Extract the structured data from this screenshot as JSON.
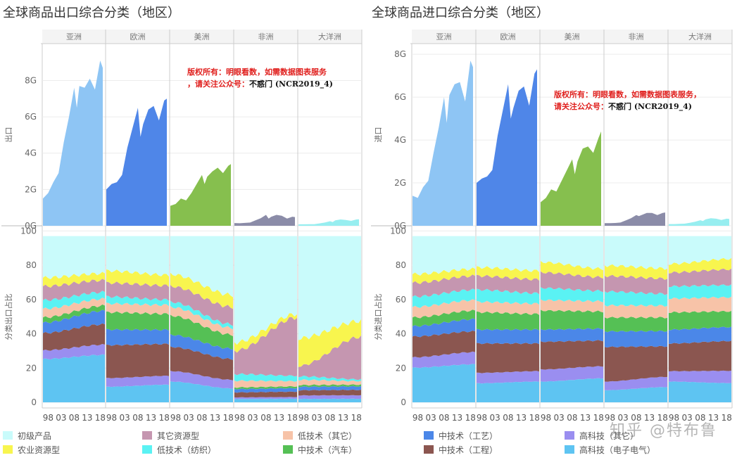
{
  "watermark": "知乎 @特布鲁",
  "chart_data": [
    {
      "type": "area",
      "title": "全球商品出口综合分类（地区）",
      "regions": [
        "亚洲",
        "欧洲",
        "美洲",
        "非洲",
        "大洋洲"
      ],
      "x_tick_labels": [
        "98",
        "03",
        "08",
        "13",
        "18"
      ],
      "top": {
        "ylabel": "出口",
        "ylim": [
          0,
          9.8
        ],
        "ytick_labels": [
          "0G",
          "2G",
          "4G",
          "6G",
          "8G"
        ],
        "yticks": [
          0,
          2,
          4,
          6,
          8
        ],
        "series": [
          {
            "region": "亚洲",
            "x": [
              1996,
              1998,
              2000,
              2002,
              2004,
              2006,
              2008,
              2009,
              2010,
              2012,
              2014,
              2016,
              2018,
              2019
            ],
            "values": [
              1.5,
              1.8,
              2.4,
              2.9,
              4.6,
              6.0,
              7.6,
              6.5,
              7.7,
              7.6,
              8.1,
              7.5,
              9.1,
              8.7
            ]
          },
          {
            "region": "欧洲",
            "x": [
              1996,
              1998,
              2000,
              2002,
              2004,
              2006,
              2008,
              2009,
              2010,
              2012,
              2014,
              2016,
              2018,
              2019
            ],
            "values": [
              2.0,
              2.3,
              2.4,
              2.8,
              4.3,
              5.4,
              6.5,
              4.9,
              5.6,
              6.4,
              6.6,
              5.8,
              6.9,
              7.0
            ]
          },
          {
            "region": "美洲",
            "x": [
              1996,
              1998,
              2000,
              2002,
              2004,
              2006,
              2008,
              2009,
              2010,
              2012,
              2014,
              2016,
              2018,
              2019
            ],
            "values": [
              1.1,
              1.2,
              1.5,
              1.4,
              1.8,
              2.3,
              2.8,
              2.3,
              2.7,
              3.0,
              3.2,
              2.9,
              3.3,
              3.4
            ]
          },
          {
            "region": "非洲",
            "x": [
              1996,
              1998,
              2000,
              2002,
              2004,
              2006,
              2008,
              2009,
              2010,
              2012,
              2014,
              2016,
              2018,
              2019
            ],
            "values": [
              0.15,
              0.14,
              0.16,
              0.18,
              0.3,
              0.42,
              0.6,
              0.4,
              0.5,
              0.6,
              0.55,
              0.4,
              0.5,
              0.48
            ]
          },
          {
            "region": "大洋洲",
            "x": [
              1996,
              1998,
              2000,
              2002,
              2004,
              2006,
              2008,
              2009,
              2010,
              2012,
              2014,
              2016,
              2018,
              2019
            ],
            "values": [
              0.08,
              0.08,
              0.09,
              0.09,
              0.13,
              0.18,
              0.25,
              0.2,
              0.3,
              0.35,
              0.32,
              0.27,
              0.35,
              0.36
            ]
          }
        ]
      },
      "bottom": {
        "ylabel": "分类出口占比",
        "ylim": [
          0,
          103
        ],
        "ytick_labels": [
          "0",
          "20",
          "40",
          "60",
          "80",
          "100"
        ],
        "yticks": [
          0,
          20,
          40,
          60,
          80,
          100
        ]
      },
      "annotation": {
        "line1": "版权所有：明眼看数，如需数据图表服务",
        "line2_red": "，请关注公众号：",
        "line2_black": "不惑门 (NCR2019_4)"
      }
    },
    {
      "type": "area",
      "title": "全球商品进口综合分类（地区）",
      "regions": [
        "亚洲",
        "欧洲",
        "美洲",
        "非洲",
        "大洋洲"
      ],
      "x_tick_labels": [
        "98",
        "03",
        "08",
        "13",
        "18"
      ],
      "top": {
        "ylabel": "进口",
        "ylim": [
          0,
          8.3
        ],
        "ytick_labels": [
          "0G",
          "2G",
          "4G",
          "6G",
          "8G"
        ],
        "yticks": [
          0,
          2,
          4,
          6,
          8
        ],
        "series": [
          {
            "region": "亚洲",
            "x": [
              1996,
              1998,
              2000,
              2002,
              2004,
              2006,
              2008,
              2009,
              2010,
              2012,
              2014,
              2016,
              2018,
              2019
            ],
            "values": [
              1.4,
              1.3,
              1.8,
              2.1,
              3.4,
              4.6,
              6.0,
              4.8,
              6.1,
              6.6,
              6.7,
              5.8,
              7.7,
              7.4
            ]
          },
          {
            "region": "欧洲",
            "x": [
              1996,
              1998,
              2000,
              2002,
              2004,
              2006,
              2008,
              2009,
              2010,
              2012,
              2014,
              2016,
              2018,
              2019
            ],
            "values": [
              2.0,
              2.2,
              2.3,
              2.6,
              4.2,
              5.4,
              6.6,
              5.0,
              5.5,
              6.3,
              6.5,
              5.6,
              7.1,
              7.3
            ]
          },
          {
            "region": "美洲",
            "x": [
              1996,
              1998,
              2000,
              2002,
              2004,
              2006,
              2008,
              2009,
              2010,
              2012,
              2014,
              2016,
              2018,
              2019
            ],
            "values": [
              1.1,
              1.3,
              1.7,
              1.6,
              2.1,
              2.6,
              3.1,
              2.4,
              3.0,
              3.6,
              3.7,
              3.4,
              4.1,
              4.4
            ]
          },
          {
            "region": "非洲",
            "x": [
              1996,
              1998,
              2000,
              2002,
              2004,
              2006,
              2008,
              2009,
              2010,
              2012,
              2014,
              2016,
              2018,
              2019
            ],
            "values": [
              0.12,
              0.12,
              0.13,
              0.15,
              0.25,
              0.35,
              0.5,
              0.45,
              0.5,
              0.6,
              0.6,
              0.5,
              0.6,
              0.62
            ]
          },
          {
            "region": "大洋洲",
            "x": [
              1996,
              1998,
              2000,
              2002,
              2004,
              2006,
              2008,
              2009,
              2010,
              2012,
              2014,
              2016,
              2018,
              2019
            ],
            "values": [
              0.08,
              0.08,
              0.09,
              0.1,
              0.14,
              0.19,
              0.26,
              0.22,
              0.3,
              0.35,
              0.33,
              0.27,
              0.33,
              0.32
            ]
          }
        ]
      },
      "bottom": {
        "ylabel": "分类进口占比",
        "ylim": [
          0,
          103
        ],
        "ytick_labels": [
          "0",
          "20",
          "40",
          "60",
          "80",
          "100"
        ],
        "yticks": [
          0,
          20,
          40,
          60,
          80,
          100
        ]
      },
      "annotation": {
        "line1": "版权所有：明眼看数，如需数据图表服务，",
        "line2_red": "请关注公众号：",
        "line2_black": "不惑门 (NCR2019_4)"
      }
    }
  ],
  "region_colors": [
    "#8ec5f4",
    "#4f86e8",
    "#86bf4e",
    "#8b8ca8",
    "#97eef0"
  ],
  "categories": [
    {
      "name": "高科技（电子电气）",
      "color": "#5ec4f2"
    },
    {
      "name": "高科技（其它）",
      "color": "#9a8ef0"
    },
    {
      "name": "中技术（工程）",
      "color": "#8b5650"
    },
    {
      "name": "中技术（工艺）",
      "color": "#4b87e8"
    },
    {
      "name": "中技术（汽车）",
      "color": "#55c055"
    },
    {
      "name": "低技术（其它）",
      "color": "#f7c3a8"
    },
    {
      "name": "低技术（纺织）",
      "color": "#5af2f3"
    },
    {
      "name": "其它资源型",
      "color": "#c596b0"
    },
    {
      "name": "农业资源型",
      "color": "#f8f54e"
    },
    {
      "name": "初级产品",
      "color": "#c9fbfb"
    }
  ],
  "shares": {
    "export": {
      "亚洲": {
        "start": [
          25,
          5,
          10,
          6,
          3,
          5,
          5,
          8,
          5,
          24
        ],
        "end": [
          28,
          6,
          12,
          8,
          3,
          4,
          4,
          7,
          4,
          22
        ]
      },
      "欧洲": {
        "start": [
          9,
          5,
          19,
          9,
          10,
          5,
          4,
          8,
          7,
          20
        ],
        "end": [
          10,
          5,
          18,
          8,
          9,
          5,
          3,
          8,
          6,
          22
        ]
      },
      "美洲": {
        "start": [
          12,
          6,
          14,
          7,
          11,
          5,
          3,
          9,
          7,
          22
        ],
        "end": [
          8,
          5,
          12,
          6,
          8,
          4,
          2,
          10,
          7,
          34
        ]
      },
      "非洲": {
        "start": [
          2,
          1,
          3,
          2,
          1,
          4,
          4,
          14,
          5,
          64
        ],
        "end": [
          2,
          1,
          3,
          2,
          1,
          3,
          3,
          33,
          2,
          44
        ]
      },
      "大洋洲": {
        "start": [
          2,
          2,
          3,
          2,
          1,
          3,
          2,
          6,
          16,
          59
        ],
        "end": [
          2,
          2,
          3,
          2,
          1,
          2,
          1,
          24,
          9,
          48
        ]
      }
    },
    "import": {
      "亚洲": {
        "start": [
          20,
          6,
          12,
          6,
          5,
          6,
          6,
          8,
          5,
          22
        ],
        "end": [
          22,
          7,
          12,
          7,
          5,
          6,
          6,
          8,
          4,
          19
        ]
      },
      "欧洲": {
        "start": [
          11,
          6,
          17,
          8,
          10,
          6,
          7,
          8,
          5,
          18
        ],
        "end": [
          12,
          6,
          16,
          8,
          9,
          6,
          6,
          8,
          5,
          20
        ]
      },
      "美洲": {
        "start": [
          12,
          7,
          16,
          7,
          11,
          6,
          7,
          9,
          6,
          15
        ],
        "end": [
          14,
          7,
          15,
          7,
          10,
          6,
          6,
          8,
          5,
          19
        ]
      },
      "非洲": {
        "start": [
          7,
          5,
          20,
          9,
          8,
          7,
          8,
          9,
          6,
          17
        ],
        "end": [
          9,
          6,
          18,
          9,
          8,
          7,
          7,
          9,
          6,
          19
        ]
      },
      "大洋洲": {
        "start": [
          12,
          6,
          16,
          8,
          10,
          8,
          7,
          8,
          5,
          16
        ],
        "end": [
          11,
          7,
          17,
          8,
          9,
          8,
          7,
          9,
          6,
          13
        ]
      }
    }
  },
  "legend_items": [
    {
      "label": "初级产品",
      "color": "#c9fbfb"
    },
    {
      "label": "其它资源型",
      "color": "#c596b0"
    },
    {
      "label": "低技术（其它）",
      "color": "#f7c3a8"
    },
    {
      "label": "中技术（工艺）",
      "color": "#4b87e8"
    },
    {
      "label": "高科技（其它）",
      "color": "#9a8ef0"
    },
    {
      "label": "农业资源型",
      "color": "#f8f54e"
    },
    {
      "label": "低技术（纺织）",
      "color": "#5af2f3"
    },
    {
      "label": "中技术（汽车）",
      "color": "#55c055"
    },
    {
      "label": "中技术（工程）",
      "color": "#8b5650"
    },
    {
      "label": "高科技（电子电气）",
      "color": "#5ec4f2"
    }
  ]
}
